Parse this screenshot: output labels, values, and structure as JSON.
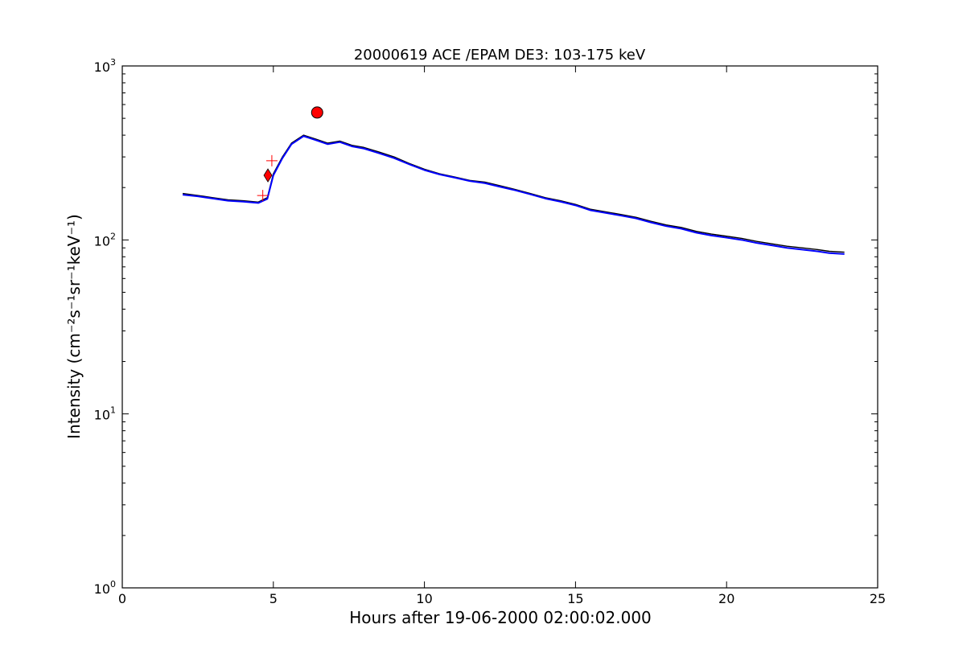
{
  "chart_data": {
    "type": "line",
    "title": "20000619 ACE /EPAM DE3: 103-175 keV",
    "xlabel": "Hours after 19-06-2000 02:00:02.000",
    "ylabel": "Intensity (cm⁻²s⁻¹sr⁻¹keV⁻¹)",
    "xlim": [
      0,
      25
    ],
    "ylim": [
      1,
      1000
    ],
    "yscale": "log",
    "grid": false,
    "legend": "none",
    "x_ticks": [
      "0",
      "5",
      "10",
      "15",
      "20",
      "25"
    ],
    "y_ticks": [
      {
        "base": "10",
        "exp": "0"
      },
      {
        "base": "10",
        "exp": "1"
      },
      {
        "base": "10",
        "exp": "2"
      },
      {
        "base": "10",
        "exp": "3"
      }
    ],
    "x_tick_values": [
      0,
      5,
      10,
      15,
      20,
      25
    ],
    "y_tick_values": [
      1,
      10,
      100,
      1000
    ],
    "series": [
      {
        "color": "#000000",
        "x": [
          2.0,
          2.5,
          3.0,
          3.5,
          4.0,
          4.5,
          4.8,
          5.0,
          5.3,
          5.6,
          6.0,
          6.4,
          6.8,
          7.2,
          7.6,
          8.0,
          8.5,
          9.0,
          9.5,
          10.0,
          10.5,
          11.0,
          11.5,
          12.0,
          12.5,
          13.0,
          13.5,
          14.0,
          14.5,
          15.0,
          15.5,
          16.0,
          16.5,
          17.0,
          17.5,
          18.0,
          18.5,
          19.0,
          19.5,
          20.0,
          20.5,
          21.0,
          21.5,
          22.0,
          22.5,
          23.0,
          23.4,
          23.9
        ],
        "y": [
          185,
          180,
          175,
          170,
          168,
          165,
          175,
          240,
          300,
          360,
          400,
          380,
          360,
          370,
          350,
          340,
          320,
          300,
          275,
          255,
          240,
          230,
          220,
          215,
          205,
          195,
          185,
          175,
          168,
          160,
          150,
          145,
          140,
          135,
          128,
          122,
          118,
          112,
          108,
          105,
          102,
          98,
          95,
          92,
          90,
          88,
          86,
          85
        ]
      },
      {
        "color": "#0000ff",
        "x": [
          2.0,
          2.5,
          3.0,
          3.5,
          4.0,
          4.5,
          4.8,
          5.0,
          5.3,
          5.6,
          6.0,
          6.4,
          6.8,
          7.2,
          7.6,
          8.0,
          8.5,
          9.0,
          9.5,
          10.0,
          10.5,
          11.0,
          11.5,
          12.0,
          12.5,
          13.0,
          13.5,
          14.0,
          14.5,
          15.0,
          15.5,
          16.0,
          16.5,
          17.0,
          17.5,
          18.0,
          18.5,
          19.0,
          19.5,
          20.0,
          20.5,
          21.0,
          21.5,
          22.0,
          22.5,
          23.0,
          23.4,
          23.9
        ],
        "y": [
          182,
          178,
          173,
          168,
          166,
          163,
          172,
          235,
          295,
          355,
          395,
          375,
          355,
          365,
          345,
          335,
          315,
          295,
          272,
          252,
          238,
          228,
          218,
          212,
          202,
          193,
          183,
          173,
          166,
          158,
          148,
          143,
          138,
          133,
          126,
          120,
          116,
          110,
          106,
          103,
          100,
          96,
          93,
          90,
          88,
          86,
          84,
          83
        ]
      }
    ],
    "markers": [
      {
        "shape": "diamond",
        "color": "#ff0000",
        "x": 4.82,
        "y": 235
      },
      {
        "shape": "circle",
        "color": "#ff0000",
        "x": 6.45,
        "y": 540
      },
      {
        "shape": "plus",
        "color": "#ff0000",
        "x": 4.95,
        "y": 285
      },
      {
        "shape": "plus",
        "color": "#ff0000",
        "x": 4.65,
        "y": 180
      }
    ]
  }
}
